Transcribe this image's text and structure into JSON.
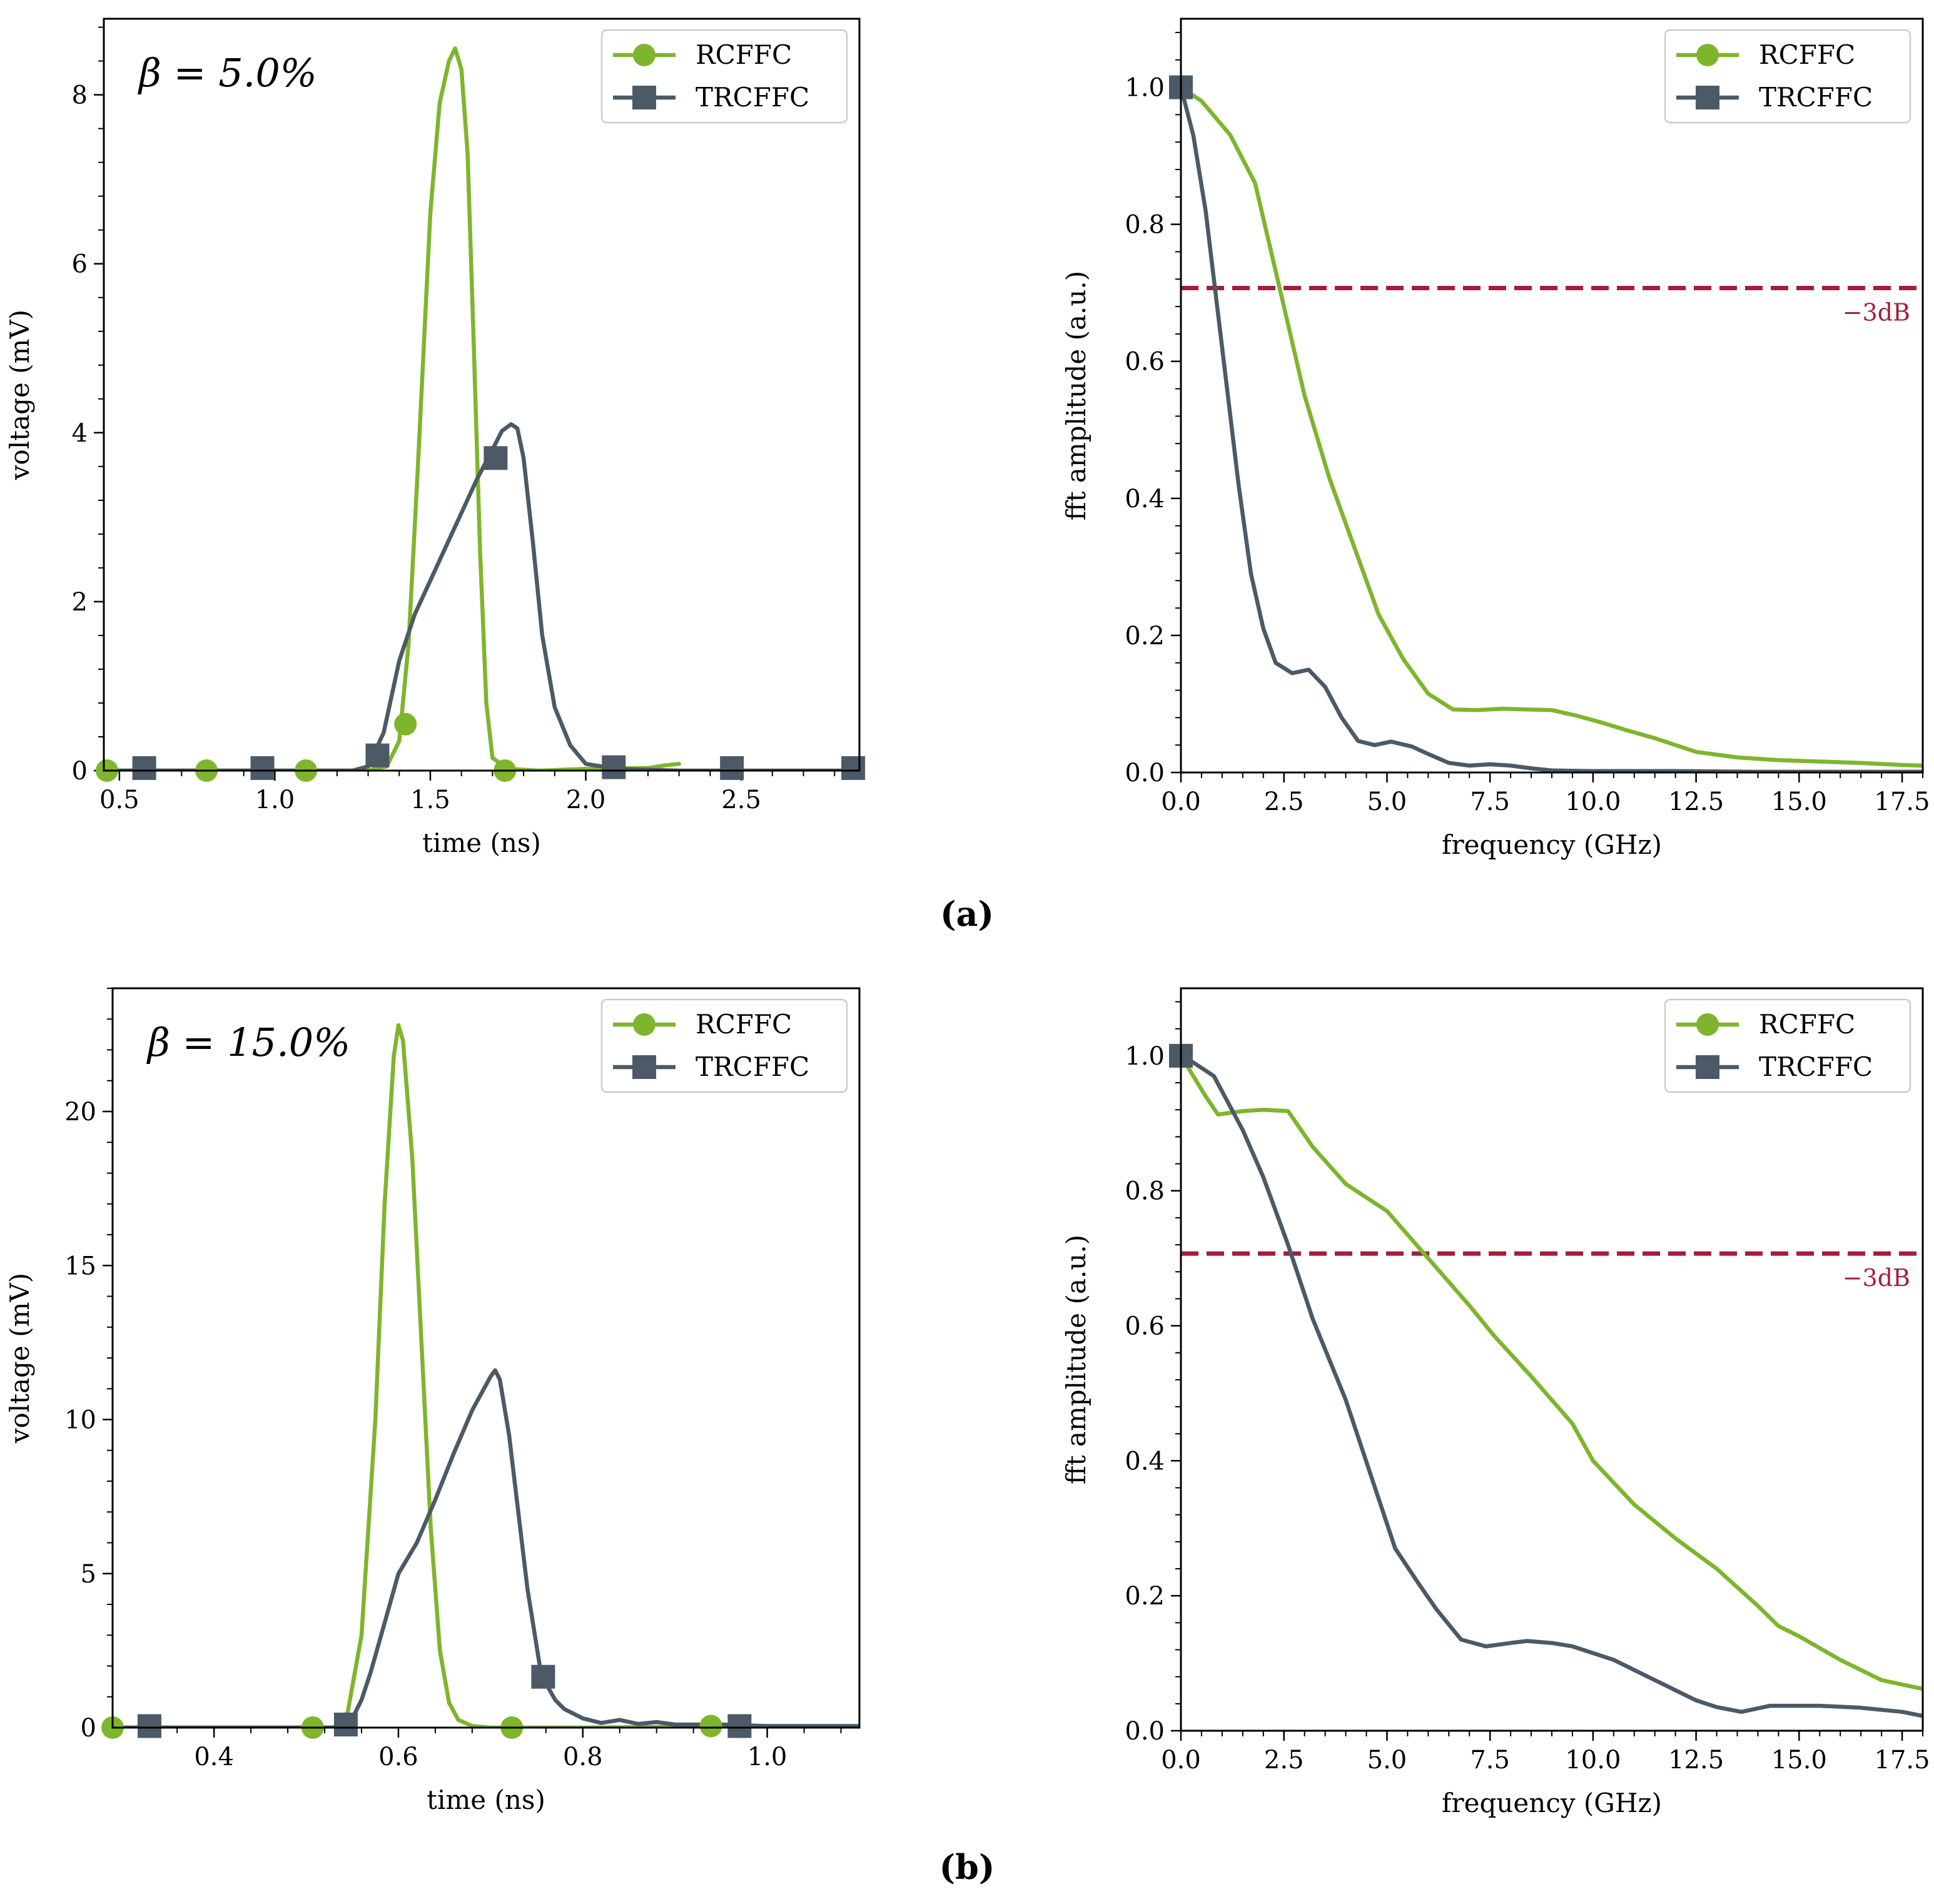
{
  "colors": {
    "rcffc": "#7fb52d",
    "trcffc": "#4b5a66",
    "threshold": "#a51d3a",
    "axis": "#000000"
  },
  "panel_labels": [
    "(a)",
    "(b)"
  ],
  "chart_data": [
    {
      "id": "a-time",
      "type": "line",
      "annotation": "β = 5.0%",
      "xlabel": "time (ns)",
      "ylabel": "voltage (mV)",
      "xlim": [
        0.45,
        2.88
      ],
      "ylim": [
        0,
        8.9
      ],
      "xticks": [
        0.5,
        1.0,
        1.5,
        2.0,
        2.5
      ],
      "xtick_labels": [
        "0.5",
        "1.0",
        "1.5",
        "2.0",
        "2.5"
      ],
      "yticks": [
        0,
        2,
        4,
        6,
        8
      ],
      "ytick_labels": [
        "0",
        "2",
        "4",
        "6",
        "8"
      ],
      "legend": [
        "RCFFC",
        "TRCFFC"
      ],
      "legend_position": "top-right",
      "series": [
        {
          "name": "RCFFC",
          "x": [
            0.45,
            1.3,
            1.36,
            1.4,
            1.43,
            1.46,
            1.5,
            1.53,
            1.56,
            1.58,
            1.6,
            1.62,
            1.64,
            1.66,
            1.68,
            1.7,
            1.75,
            1.85,
            2.0,
            2.2,
            2.25,
            2.3
          ],
          "y": [
            0,
            0,
            0.05,
            0.35,
            1.5,
            3.6,
            6.6,
            7.9,
            8.4,
            8.55,
            8.3,
            7.3,
            5.0,
            2.6,
            0.8,
            0.15,
            0.02,
            0,
            0.02,
            0.03,
            0.06,
            0.08
          ],
          "markers_x": [
            0.46,
            0.78,
            1.1,
            1.42,
            1.74
          ],
          "markers_y": [
            0,
            0,
            0,
            0.55,
            0
          ]
        },
        {
          "name": "TRCFFC",
          "x": [
            0.45,
            1.25,
            1.3,
            1.35,
            1.4,
            1.45,
            1.5,
            1.55,
            1.6,
            1.65,
            1.7,
            1.73,
            1.76,
            1.78,
            1.8,
            1.83,
            1.86,
            1.9,
            1.95,
            2.0,
            2.1,
            2.3,
            2.88
          ],
          "y": [
            0,
            0,
            0.05,
            0.45,
            1.3,
            1.85,
            2.25,
            2.65,
            3.05,
            3.45,
            3.8,
            4.02,
            4.1,
            4.05,
            3.7,
            2.7,
            1.6,
            0.75,
            0.3,
            0.08,
            0.02,
            0,
            0
          ],
          "markers_x": [
            0.58,
            0.96,
            1.33,
            1.71,
            2.09,
            2.47,
            2.86
          ],
          "markers_y": [
            0.03,
            0.03,
            0.18,
            3.7,
            0.04,
            0.03,
            0.03
          ]
        }
      ]
    },
    {
      "id": "a-fft",
      "type": "line",
      "annotation": "",
      "xlabel": "frequency (GHz)",
      "ylabel": "fft amplitude (a.u.)",
      "xlim": [
        0,
        18
      ],
      "ylim": [
        0,
        1.1
      ],
      "xticks": [
        0.0,
        2.5,
        5.0,
        7.5,
        10.0,
        12.5,
        15.0,
        17.5
      ],
      "xtick_labels": [
        "0.0",
        "2.5",
        "5.0",
        "7.5",
        "10.0",
        "12.5",
        "15.0",
        "17.5"
      ],
      "yticks": [
        0.0,
        0.2,
        0.4,
        0.6,
        0.8,
        1.0
      ],
      "ytick_labels": [
        "0.0",
        "0.2",
        "0.4",
        "0.6",
        "0.8",
        "1.0"
      ],
      "legend": [
        "RCFFC",
        "TRCFFC"
      ],
      "legend_position": "top-right",
      "threshold": {
        "y": 0.707,
        "label": "−3dB"
      },
      "series": [
        {
          "name": "RCFFC",
          "x": [
            0,
            0.5,
            1.2,
            1.8,
            2.5,
            3.0,
            3.6,
            4.2,
            4.8,
            5.4,
            6.0,
            6.6,
            7.2,
            7.8,
            8.4,
            9.0,
            9.6,
            10.2,
            10.8,
            11.5,
            12.5,
            13.5,
            14.5,
            15.5,
            16.5,
            17.5,
            18
          ],
          "y": [
            1.0,
            0.98,
            0.93,
            0.86,
            0.68,
            0.55,
            0.43,
            0.33,
            0.23,
            0.165,
            0.115,
            0.092,
            0.091,
            0.093,
            0.092,
            0.091,
            0.083,
            0.073,
            0.062,
            0.05,
            0.03,
            0.022,
            0.018,
            0.016,
            0.014,
            0.011,
            0.01
          ],
          "markers_x": [
            0
          ],
          "markers_y": [
            1.0
          ]
        },
        {
          "name": "TRCFFC",
          "x": [
            0,
            0.3,
            0.6,
            1.0,
            1.4,
            1.7,
            2.0,
            2.3,
            2.7,
            3.1,
            3.5,
            3.9,
            4.3,
            4.7,
            5.1,
            5.6,
            6.0,
            6.5,
            7.0,
            7.5,
            8.0,
            8.5,
            9.0,
            10.0,
            11.0,
            12.0,
            14.0,
            16.0,
            18.0
          ],
          "y": [
            1.0,
            0.93,
            0.82,
            0.62,
            0.42,
            0.29,
            0.21,
            0.16,
            0.145,
            0.15,
            0.125,
            0.08,
            0.046,
            0.04,
            0.045,
            0.038,
            0.027,
            0.014,
            0.01,
            0.012,
            0.01,
            0.006,
            0.003,
            0.002,
            0.002,
            0.002,
            0.001,
            0.001,
            0.001
          ],
          "markers_x": [
            0
          ],
          "markers_y": [
            1.0
          ]
        }
      ]
    },
    {
      "id": "b-time",
      "type": "line",
      "annotation": "β = 15.0%",
      "xlabel": "time (ns)",
      "ylabel": "voltage (mV)",
      "xlim": [
        0.29,
        1.1
      ],
      "ylim": [
        0,
        24
      ],
      "xticks": [
        0.4,
        0.6,
        0.8,
        1.0
      ],
      "xtick_labels": [
        "0.4",
        "0.6",
        "0.8",
        "1.0"
      ],
      "yticks": [
        0,
        5,
        10,
        15,
        20
      ],
      "ytick_labels": [
        "0",
        "5",
        "10",
        "15",
        "20"
      ],
      "legend": [
        "RCFFC",
        "TRCFFC"
      ],
      "legend_position": "top-right",
      "series": [
        {
          "name": "RCFFC",
          "x": [
            0.29,
            0.53,
            0.545,
            0.56,
            0.575,
            0.585,
            0.595,
            0.6,
            0.605,
            0.615,
            0.625,
            0.635,
            0.645,
            0.655,
            0.665,
            0.68,
            0.7,
            0.8,
            0.9,
            1.0,
            1.1
          ],
          "y": [
            0,
            0,
            0.5,
            3,
            10,
            17,
            21.8,
            22.8,
            22.3,
            18.5,
            12.5,
            6.5,
            2.5,
            0.8,
            0.25,
            0.05,
            0,
            0,
            0.02,
            0,
            0
          ],
          "markers_x": [
            0.29,
            0.507,
            0.723,
            0.939
          ],
          "markers_y": [
            0,
            0,
            0,
            0.05
          ]
        },
        {
          "name": "TRCFFC",
          "x": [
            0.29,
            0.53,
            0.55,
            0.56,
            0.57,
            0.585,
            0.6,
            0.62,
            0.64,
            0.66,
            0.68,
            0.7,
            0.705,
            0.71,
            0.72,
            0.73,
            0.74,
            0.755,
            0.77,
            0.78,
            0.8,
            0.82,
            0.84,
            0.86,
            0.88,
            0.9,
            0.95,
            1.0,
            1.1
          ],
          "y": [
            0,
            0,
            0.3,
            0.9,
            1.8,
            3.4,
            5.0,
            6.0,
            7.4,
            8.9,
            10.3,
            11.4,
            11.6,
            11.3,
            9.5,
            7.0,
            4.5,
            1.7,
            0.9,
            0.6,
            0.3,
            0.15,
            0.25,
            0.12,
            0.18,
            0.1,
            0.1,
            0.05,
            0.05
          ],
          "markers_x": [
            0.33,
            0.543,
            0.757,
            0.97
          ],
          "markers_y": [
            0.05,
            0.1,
            1.65,
            0.05
          ]
        }
      ]
    },
    {
      "id": "b-fft",
      "type": "line",
      "annotation": "",
      "xlabel": "frequency (GHz)",
      "ylabel": "fft amplitude (a.u.)",
      "xlim": [
        0,
        18
      ],
      "ylim": [
        0,
        1.1
      ],
      "xticks": [
        0.0,
        2.5,
        5.0,
        7.5,
        10.0,
        12.5,
        15.0,
        17.5
      ],
      "xtick_labels": [
        "0.0",
        "2.5",
        "5.0",
        "7.5",
        "10.0",
        "12.5",
        "15.0",
        "17.5"
      ],
      "yticks": [
        0.0,
        0.2,
        0.4,
        0.6,
        0.8,
        1.0
      ],
      "ytick_labels": [
        "0.0",
        "0.2",
        "0.4",
        "0.6",
        "0.8",
        "1.0"
      ],
      "legend": [
        "RCFFC",
        "TRCFFC"
      ],
      "legend_position": "top-right",
      "threshold": {
        "y": 0.707,
        "label": "−3dB"
      },
      "series": [
        {
          "name": "RCFFC",
          "x": [
            0,
            0.3,
            0.6,
            0.9,
            1.5,
            2.0,
            2.6,
            3.2,
            4.0,
            5.0,
            6.0,
            7.0,
            7.6,
            8.5,
            9.5,
            10.0,
            11.0,
            12.0,
            13.0,
            14.0,
            14.5,
            15.0,
            16.0,
            17.0,
            18.0
          ],
          "y": [
            1.0,
            0.97,
            0.94,
            0.913,
            0.918,
            0.92,
            0.918,
            0.865,
            0.81,
            0.77,
            0.7,
            0.63,
            0.585,
            0.525,
            0.455,
            0.4,
            0.335,
            0.285,
            0.24,
            0.185,
            0.155,
            0.14,
            0.105,
            0.075,
            0.062
          ],
          "markers_x": [
            0
          ],
          "markers_y": [
            1.0
          ]
        },
        {
          "name": "TRCFFC",
          "x": [
            0,
            0.3,
            0.8,
            1.5,
            2.0,
            2.6,
            3.2,
            4.0,
            4.6,
            5.2,
            5.8,
            6.2,
            6.8,
            7.4,
            8.0,
            8.4,
            9.0,
            9.5,
            10.0,
            10.5,
            11.0,
            12.0,
            12.5,
            13.0,
            13.6,
            14.3,
            15.0,
            15.5,
            16.5,
            17.5,
            18.0
          ],
          "y": [
            1.0,
            0.99,
            0.97,
            0.89,
            0.82,
            0.72,
            0.61,
            0.49,
            0.38,
            0.27,
            0.215,
            0.18,
            0.135,
            0.125,
            0.13,
            0.133,
            0.13,
            0.125,
            0.115,
            0.105,
            0.09,
            0.06,
            0.045,
            0.035,
            0.028,
            0.037,
            0.037,
            0.037,
            0.034,
            0.028,
            0.022
          ],
          "markers_x": [
            0
          ],
          "markers_y": [
            1.0
          ]
        }
      ]
    }
  ]
}
